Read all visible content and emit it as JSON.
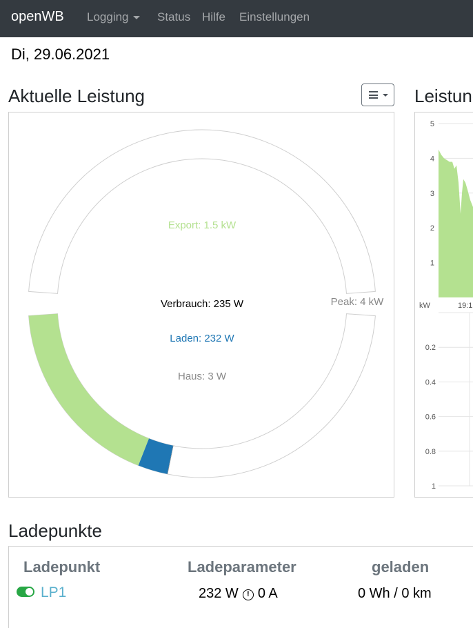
{
  "navbar": {
    "brand": "openWB",
    "items": [
      {
        "label": "Logging",
        "has_dropdown": true
      },
      {
        "label": "Status"
      },
      {
        "label": "Hilfe"
      },
      {
        "label": "Einstellungen"
      }
    ]
  },
  "date": "Di, 29.06.2021",
  "power_section": {
    "title": "Aktuelle Leistung",
    "menu_icon": "hamburger-icon",
    "labels": {
      "export": "Export: 1.5 kW",
      "consumption": "Verbrauch: 235 W",
      "charging": "Laden: 232 W",
      "house": "Haus: 3 W",
      "peak": "Peak: 4 kW"
    },
    "peak_kw": 4,
    "arc_fractions": {
      "export": 0.375,
      "charging": 0.058,
      "house": 0.0008
    },
    "colors": {
      "export": "#b4e190",
      "charging": "#1f77b4",
      "house": "#888888",
      "consumption": "#000000",
      "ring_outline": "#cfcfcf"
    }
  },
  "history_section": {
    "title": "Leistung",
    "unit": "kW",
    "time_label": "19:1",
    "upper_ticks": [
      "5",
      "4",
      "3",
      "2",
      "1"
    ],
    "lower_ticks": [
      "0.2",
      "0.4",
      "0.6",
      "0.8",
      "1"
    ],
    "fill_color": "#b4e190"
  },
  "chargepoints": {
    "title": "Ladepunkte",
    "headers": [
      "Ladepunkt",
      "Ladeparameter",
      "geladen"
    ],
    "rows": [
      {
        "name": "LP1",
        "power": "232 W",
        "current": "0 A",
        "charged": "0 Wh / 0 km",
        "enabled": true
      }
    ]
  }
}
